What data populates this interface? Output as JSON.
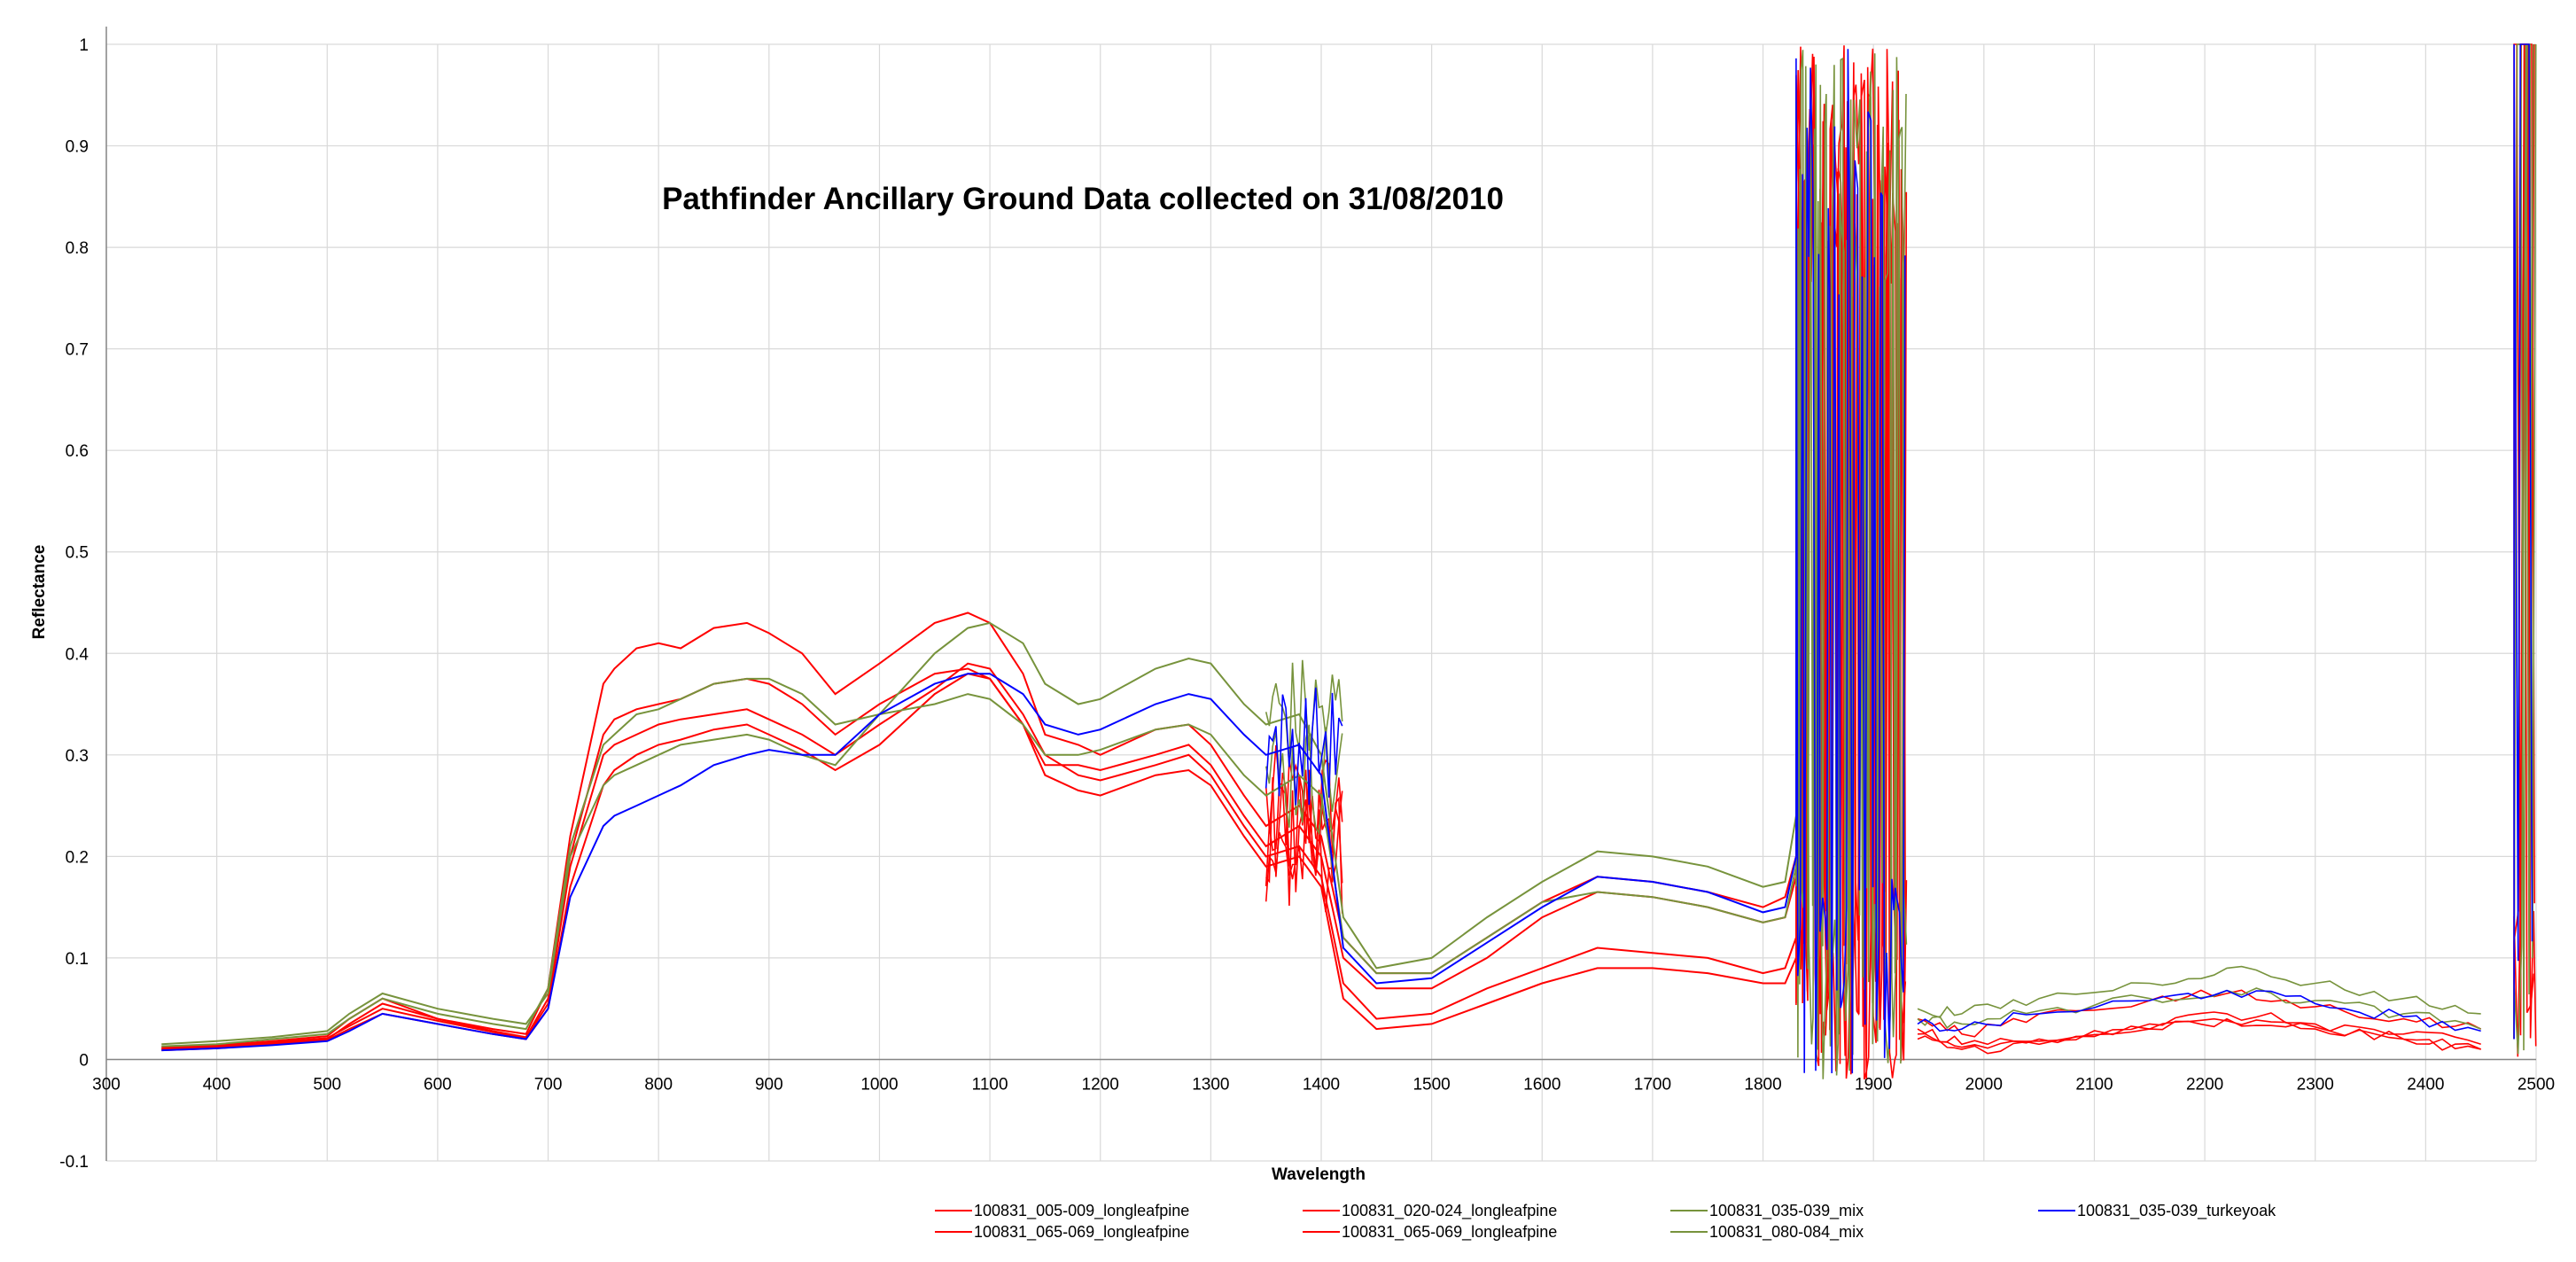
{
  "chart_data": {
    "type": "line",
    "title": "Pathfinder Ancillary Ground Data collected on 31/08/2010",
    "xlabel": "Wavelength",
    "ylabel": "Reflectance",
    "xlim": [
      300,
      2500
    ],
    "ylim": [
      -0.1,
      1
    ],
    "x_ticks": [
      300,
      400,
      500,
      600,
      700,
      800,
      900,
      1000,
      1100,
      1200,
      1300,
      1400,
      1500,
      1600,
      1700,
      1800,
      1900,
      2000,
      2100,
      2200,
      2300,
      2400,
      2500
    ],
    "y_ticks": [
      -0.1,
      0,
      0.1,
      0.2,
      0.3,
      0.4,
      0.5,
      0.6,
      0.7,
      0.8,
      0.9,
      1
    ],
    "x_tick_labels": [
      "300",
      "400",
      "500",
      "600",
      "700",
      "800",
      "900",
      "1000",
      "1100",
      "1200",
      "1300",
      "1400",
      "1500",
      "1600",
      "1700",
      "1800",
      "1900",
      "2000",
      "2100",
      "2200",
      "2300",
      "2400",
      "2500"
    ],
    "y_tick_labels": [
      "-0.1",
      "0",
      "0.1",
      "0.2",
      "0.3",
      "0.4",
      "0.5",
      "0.6",
      "0.7",
      "0.8",
      "0.9",
      "1"
    ],
    "grid": true,
    "legend_position": "bottom",
    "series": [
      {
        "name": "100831_005-009_longleafpine",
        "color": "#ff0000",
        "x": [
          350,
          400,
          450,
          500,
          520,
          550,
          600,
          650,
          680,
          700,
          720,
          750,
          760,
          780,
          800,
          820,
          850,
          880,
          900,
          930,
          960,
          1000,
          1050,
          1080,
          1100,
          1130,
          1150,
          1180,
          1200,
          1250,
          1280,
          1300,
          1330,
          1350,
          1380,
          1400,
          1420,
          1450,
          1500,
          1550,
          1600,
          1650,
          1700,
          1750,
          1800,
          1820,
          1830
        ],
        "y": [
          0.012,
          0.014,
          0.018,
          0.023,
          0.04,
          0.06,
          0.04,
          0.03,
          0.025,
          0.07,
          0.22,
          0.37,
          0.385,
          0.405,
          0.41,
          0.405,
          0.425,
          0.43,
          0.42,
          0.4,
          0.36,
          0.39,
          0.43,
          0.44,
          0.43,
          0.38,
          0.32,
          0.31,
          0.3,
          0.325,
          0.33,
          0.31,
          0.26,
          0.23,
          0.25,
          0.22,
          0.12,
          0.085,
          0.085,
          0.12,
          0.155,
          0.18,
          0.175,
          0.165,
          0.15,
          0.16,
          0.2
        ]
      },
      {
        "name": "100831_065-069_longleafpine",
        "color": "#ff0000",
        "x": [
          350,
          400,
          450,
          500,
          520,
          550,
          600,
          650,
          680,
          700,
          720,
          750,
          760,
          780,
          800,
          820,
          850,
          880,
          900,
          930,
          960,
          1000,
          1050,
          1080,
          1100,
          1130,
          1150,
          1180,
          1200,
          1250,
          1280,
          1300,
          1330,
          1350,
          1380,
          1400,
          1420,
          1450,
          1500,
          1550,
          1600,
          1650,
          1700,
          1750,
          1800,
          1820,
          1830
        ],
        "y": [
          0.009,
          0.011,
          0.015,
          0.019,
          0.03,
          0.045,
          0.035,
          0.025,
          0.02,
          0.05,
          0.17,
          0.27,
          0.285,
          0.3,
          0.31,
          0.315,
          0.325,
          0.33,
          0.32,
          0.305,
          0.285,
          0.31,
          0.36,
          0.38,
          0.375,
          0.33,
          0.28,
          0.265,
          0.26,
          0.28,
          0.285,
          0.27,
          0.22,
          0.19,
          0.2,
          0.17,
          0.06,
          0.03,
          0.035,
          0.055,
          0.075,
          0.09,
          0.09,
          0.085,
          0.075,
          0.075,
          0.1
        ]
      },
      {
        "name": "100831_020-024_longleafpine",
        "color": "#ff0000",
        "x": [
          350,
          400,
          450,
          500,
          520,
          550,
          600,
          650,
          680,
          700,
          720,
          750,
          760,
          780,
          800,
          820,
          850,
          880,
          900,
          930,
          960,
          1000,
          1050,
          1080,
          1100,
          1130,
          1150,
          1180,
          1200,
          1250,
          1280,
          1300,
          1330,
          1350,
          1380,
          1400,
          1420,
          1450,
          1500,
          1550,
          1600,
          1650,
          1700,
          1750,
          1800,
          1820,
          1830
        ],
        "y": [
          0.01,
          0.012,
          0.016,
          0.02,
          0.035,
          0.055,
          0.04,
          0.028,
          0.022,
          0.06,
          0.2,
          0.32,
          0.335,
          0.345,
          0.35,
          0.355,
          0.37,
          0.375,
          0.37,
          0.35,
          0.32,
          0.35,
          0.38,
          0.385,
          0.375,
          0.33,
          0.29,
          0.29,
          0.285,
          0.3,
          0.31,
          0.29,
          0.24,
          0.21,
          0.23,
          0.2,
          0.1,
          0.07,
          0.07,
          0.1,
          0.14,
          0.165,
          0.16,
          0.15,
          0.135,
          0.14,
          0.18
        ]
      },
      {
        "name": "100831_065-069_longleafpine",
        "color": "#ff0000",
        "x": [
          350,
          400,
          450,
          500,
          520,
          550,
          600,
          650,
          680,
          700,
          720,
          750,
          760,
          780,
          800,
          820,
          850,
          880,
          900,
          930,
          960,
          1000,
          1050,
          1080,
          1100,
          1130,
          1150,
          1180,
          1200,
          1250,
          1280,
          1300,
          1330,
          1350,
          1380,
          1400,
          1420,
          1450,
          1500,
          1550,
          1600,
          1650,
          1700,
          1750,
          1800,
          1820,
          1830
        ],
        "y": [
          0.011,
          0.013,
          0.017,
          0.021,
          0.033,
          0.05,
          0.038,
          0.027,
          0.021,
          0.055,
          0.19,
          0.3,
          0.31,
          0.32,
          0.33,
          0.335,
          0.34,
          0.345,
          0.335,
          0.32,
          0.3,
          0.33,
          0.365,
          0.39,
          0.385,
          0.34,
          0.3,
          0.28,
          0.275,
          0.29,
          0.3,
          0.28,
          0.23,
          0.2,
          0.21,
          0.18,
          0.075,
          0.04,
          0.045,
          0.07,
          0.09,
          0.11,
          0.105,
          0.1,
          0.085,
          0.09,
          0.12
        ]
      },
      {
        "name": "100831_035-039_mix",
        "color": "#77933c",
        "x": [
          350,
          400,
          450,
          500,
          520,
          550,
          600,
          650,
          680,
          700,
          720,
          750,
          760,
          780,
          800,
          820,
          850,
          880,
          900,
          930,
          960,
          1000,
          1050,
          1080,
          1100,
          1130,
          1150,
          1180,
          1200,
          1250,
          1280,
          1300,
          1330,
          1350,
          1380,
          1400,
          1420,
          1450,
          1500,
          1550,
          1600,
          1650,
          1700,
          1750,
          1800,
          1820,
          1830
        ],
        "y": [
          0.013,
          0.015,
          0.02,
          0.025,
          0.04,
          0.06,
          0.045,
          0.035,
          0.03,
          0.07,
          0.21,
          0.31,
          0.32,
          0.34,
          0.345,
          0.355,
          0.37,
          0.375,
          0.375,
          0.36,
          0.33,
          0.34,
          0.35,
          0.36,
          0.355,
          0.33,
          0.3,
          0.3,
          0.305,
          0.325,
          0.33,
          0.32,
          0.28,
          0.26,
          0.28,
          0.26,
          0.12,
          0.085,
          0.085,
          0.12,
          0.155,
          0.165,
          0.16,
          0.15,
          0.135,
          0.14,
          0.19
        ]
      },
      {
        "name": "100831_080-084_mix",
        "color": "#77933c",
        "x": [
          350,
          400,
          450,
          500,
          520,
          550,
          600,
          650,
          680,
          700,
          720,
          750,
          760,
          780,
          800,
          820,
          850,
          880,
          900,
          930,
          960,
          1000,
          1050,
          1080,
          1100,
          1130,
          1150,
          1180,
          1200,
          1250,
          1280,
          1300,
          1330,
          1350,
          1380,
          1400,
          1420,
          1450,
          1500,
          1550,
          1600,
          1650,
          1700,
          1750,
          1800,
          1820,
          1830
        ],
        "y": [
          0.015,
          0.018,
          0.022,
          0.028,
          0.045,
          0.065,
          0.05,
          0.04,
          0.035,
          0.065,
          0.2,
          0.27,
          0.28,
          0.29,
          0.3,
          0.31,
          0.315,
          0.32,
          0.315,
          0.3,
          0.29,
          0.34,
          0.4,
          0.425,
          0.43,
          0.41,
          0.37,
          0.35,
          0.355,
          0.385,
          0.395,
          0.39,
          0.35,
          0.33,
          0.34,
          0.3,
          0.14,
          0.09,
          0.1,
          0.14,
          0.175,
          0.205,
          0.2,
          0.19,
          0.17,
          0.175,
          0.24
        ]
      },
      {
        "name": "100831_035-039_turkeyoak",
        "color": "#0000ff",
        "x": [
          350,
          400,
          450,
          500,
          520,
          550,
          600,
          650,
          680,
          700,
          720,
          750,
          760,
          780,
          800,
          820,
          850,
          880,
          900,
          930,
          960,
          1000,
          1050,
          1080,
          1100,
          1130,
          1150,
          1180,
          1200,
          1250,
          1280,
          1300,
          1330,
          1350,
          1380,
          1400,
          1420,
          1450,
          1500,
          1550,
          1600,
          1650,
          1700,
          1750,
          1800,
          1820,
          1830
        ],
        "y": [
          0.009,
          0.011,
          0.014,
          0.018,
          0.028,
          0.045,
          0.035,
          0.025,
          0.02,
          0.05,
          0.16,
          0.23,
          0.24,
          0.25,
          0.26,
          0.27,
          0.29,
          0.3,
          0.305,
          0.3,
          0.3,
          0.34,
          0.37,
          0.38,
          0.38,
          0.36,
          0.33,
          0.32,
          0.325,
          0.35,
          0.36,
          0.355,
          0.32,
          0.3,
          0.31,
          0.28,
          0.11,
          0.075,
          0.08,
          0.115,
          0.15,
          0.18,
          0.175,
          0.165,
          0.145,
          0.15,
          0.2
        ]
      }
    ],
    "spike_region": [
      1830,
      1930
    ],
    "tail_region": [
      1930,
      2480
    ],
    "end_spike_region": [
      2480,
      2500
    ],
    "tail_series": [
      {
        "color": "#ff0000",
        "x": [
          1940,
          1980,
          2050,
          2150,
          2220,
          2300,
          2380,
          2450
        ],
        "y": [
          0.02,
          0.01,
          0.015,
          0.03,
          0.038,
          0.03,
          0.02,
          0.01
        ]
      },
      {
        "color": "#ff0000",
        "x": [
          1940,
          1980,
          2050,
          2150,
          2220,
          2300,
          2380,
          2450
        ],
        "y": [
          0.03,
          0.015,
          0.02,
          0.035,
          0.045,
          0.035,
          0.025,
          0.015
        ]
      },
      {
        "color": "#ff0000",
        "x": [
          1940,
          1980,
          2050,
          2150,
          2220,
          2300,
          2380,
          2450
        ],
        "y": [
          0.025,
          0.012,
          0.018,
          0.03,
          0.04,
          0.032,
          0.02,
          0.01
        ]
      },
      {
        "color": "#ff0000",
        "x": [
          1940,
          1980,
          2050,
          2150,
          2220,
          2300,
          2380,
          2450
        ],
        "y": [
          0.04,
          0.025,
          0.045,
          0.058,
          0.065,
          0.052,
          0.04,
          0.03
        ]
      },
      {
        "color": "#77933c",
        "x": [
          1940,
          1980,
          2050,
          2150,
          2220,
          2300,
          2380,
          2450
        ],
        "y": [
          0.05,
          0.045,
          0.06,
          0.075,
          0.09,
          0.075,
          0.06,
          0.045
        ]
      },
      {
        "color": "#77933c",
        "x": [
          1940,
          1980,
          2050,
          2150,
          2220,
          2300,
          2380,
          2450
        ],
        "y": [
          0.04,
          0.035,
          0.048,
          0.06,
          0.068,
          0.058,
          0.045,
          0.03
        ]
      },
      {
        "color": "#0000ff",
        "x": [
          1940,
          1980,
          2050,
          2150,
          2220,
          2300,
          2380,
          2450
        ],
        "y": [
          0.035,
          0.03,
          0.045,
          0.058,
          0.068,
          0.055,
          0.042,
          0.028
        ]
      }
    ]
  }
}
